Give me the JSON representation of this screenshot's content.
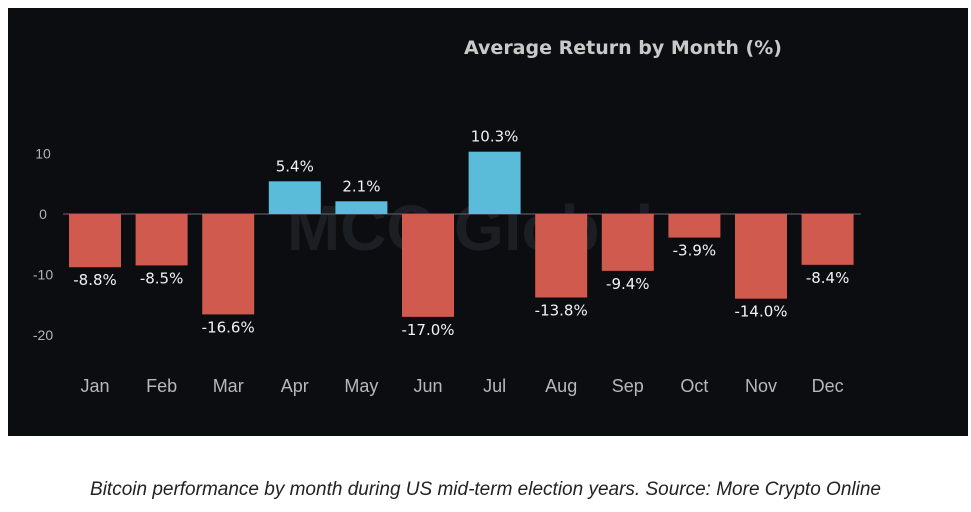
{
  "chart_data": {
    "type": "bar",
    "title": "Average Return by Month (%)",
    "xlabel": "",
    "ylabel": "",
    "categories": [
      "Jan",
      "Feb",
      "Mar",
      "Apr",
      "May",
      "Jun",
      "Jul",
      "Aug",
      "Sep",
      "Oct",
      "Nov",
      "Dec"
    ],
    "values": [
      -8.8,
      -8.5,
      -16.6,
      5.4,
      2.1,
      -17.0,
      10.3,
      -13.8,
      -9.4,
      -3.9,
      -14.0,
      -8.4
    ],
    "data_labels": [
      "-8.8%",
      "-8.5%",
      "-16.6%",
      "5.4%",
      "2.1%",
      "-17.0%",
      "10.3%",
      "-13.8%",
      "-9.4%",
      "-3.9%",
      "-14.0%",
      "-8.4%"
    ],
    "yticks": [
      10,
      0,
      -10,
      -20
    ],
    "ylim": [
      -25,
      12
    ],
    "grid": false,
    "legend": "none",
    "colors": {
      "positive": "#5bbcd9",
      "negative": "#cf5a4d",
      "background": "#0b0d10"
    },
    "watermark": "MCO Global"
  },
  "caption": "Bitcoin performance by month during US mid-term election years. Source: More Crypto Online"
}
